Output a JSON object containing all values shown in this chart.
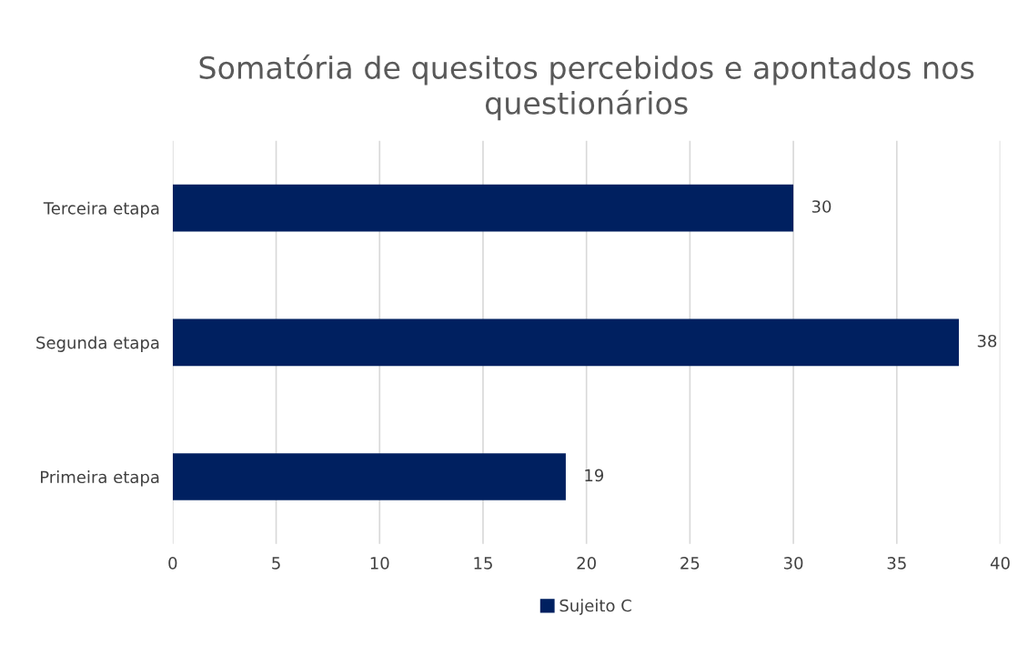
{
  "chart_data": {
    "type": "bar",
    "orientation": "horizontal",
    "title": "Somatória de quesitos percebidos e apontados nos questionários",
    "categories": [
      "Terceira etapa",
      "Segunda etapa",
      "Primeira etapa"
    ],
    "series": [
      {
        "name": "Sujeito C",
        "color": "#002060",
        "values": [
          30,
          38,
          19
        ]
      }
    ],
    "xlim": [
      0,
      40
    ],
    "xticks": [
      0,
      5,
      10,
      15,
      20,
      25,
      30,
      35,
      40
    ],
    "grid": "x",
    "legend": "bottom",
    "data_labels": true
  }
}
